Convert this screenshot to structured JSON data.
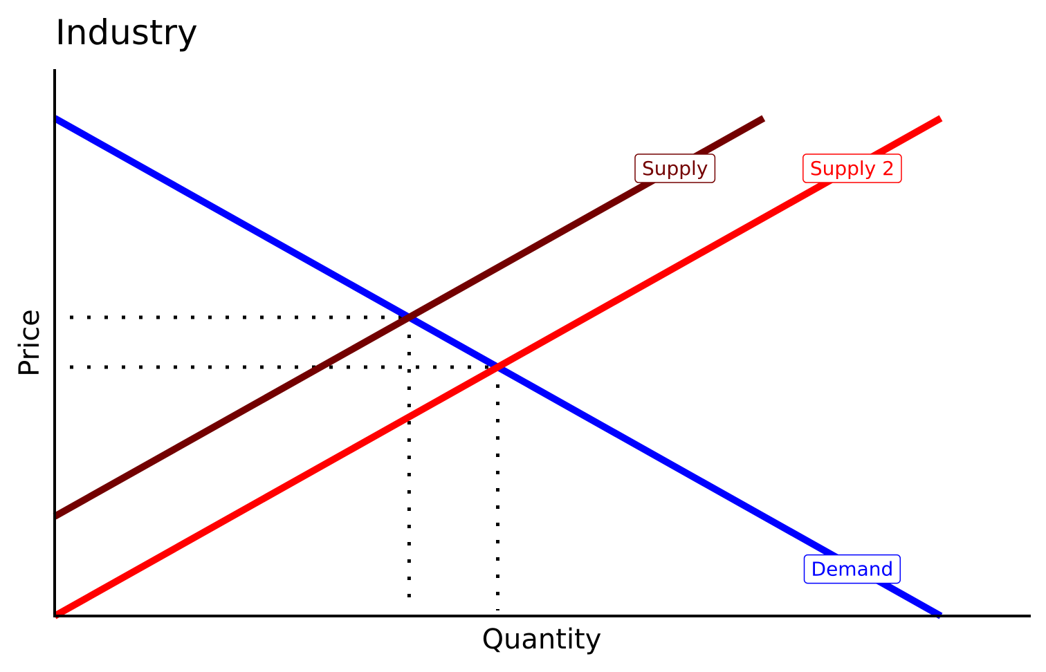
{
  "chart_data": {
    "type": "line",
    "title": "Industry",
    "xlabel": "Quantity",
    "ylabel": "Price",
    "xlim": [
      0,
      11
    ],
    "ylim": [
      0,
      11
    ],
    "grid": false,
    "show_tick_labels": false,
    "series": [
      {
        "name": "Demand",
        "color": "#0000ff",
        "x": [
          0,
          10
        ],
        "y": [
          10,
          0
        ],
        "label_at": [
          9,
          0.95
        ],
        "label_fill": "#ffffff",
        "label_border": "#0000ff"
      },
      {
        "name": "Supply",
        "color": "#730000",
        "x": [
          0,
          8
        ],
        "y": [
          2,
          10
        ],
        "label_at": [
          7,
          9
        ],
        "label_fill": "#ffffff",
        "label_border": "#730000"
      },
      {
        "name": "Supply 2",
        "color": "#ff0000",
        "x": [
          0,
          10
        ],
        "y": [
          0,
          10
        ],
        "label_at": [
          9,
          9
        ],
        "label_fill": "#ffffff",
        "label_border": "#ff0000"
      }
    ],
    "reference_lines": [
      {
        "kind": "horizontal",
        "y": 6,
        "x_from": 0,
        "x_to": 4
      },
      {
        "kind": "vertical",
        "x": 4,
        "y_from": 0,
        "y_to": 6
      },
      {
        "kind": "horizontal",
        "y": 5,
        "x_from": 0,
        "x_to": 5
      },
      {
        "kind": "vertical",
        "x": 5,
        "y_from": 0,
        "y_to": 5
      }
    ]
  }
}
